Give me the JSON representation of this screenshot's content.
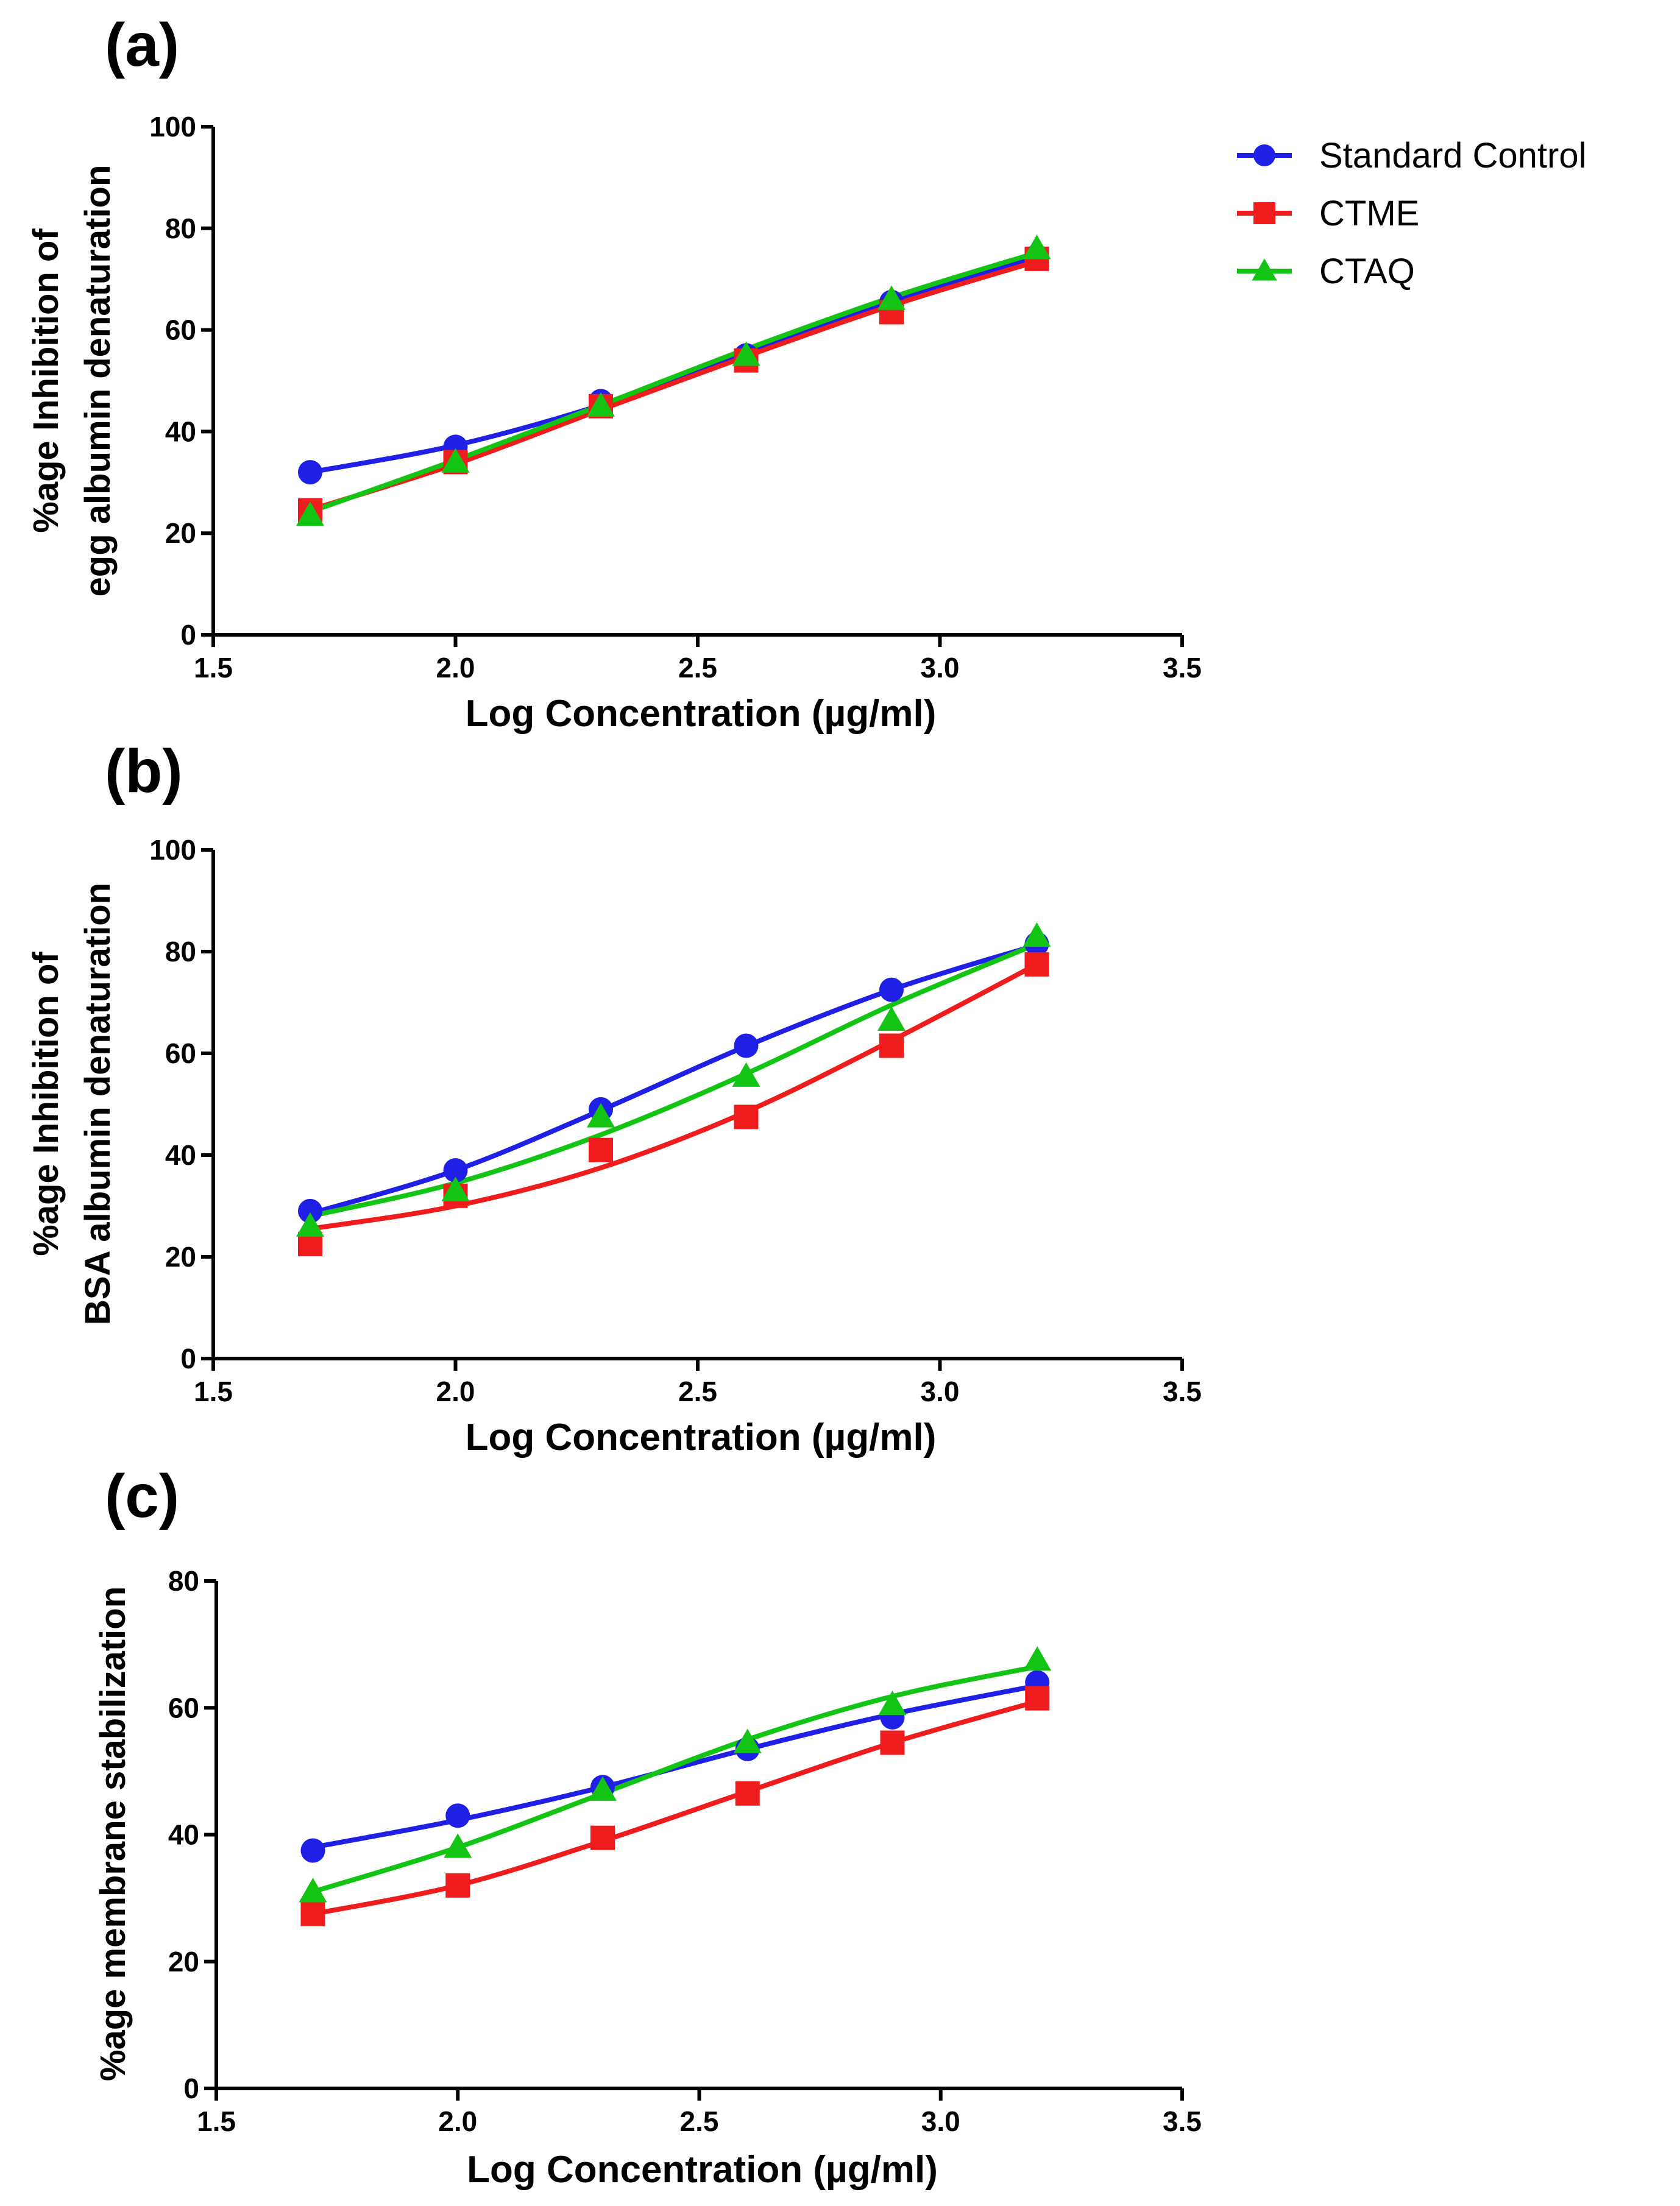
{
  "legend": {
    "items": [
      {
        "name": "Standard Control",
        "marker": "circle",
        "color": "#1f1fe6"
      },
      {
        "name": "CTME",
        "marker": "square",
        "color": "#ee1c1c"
      },
      {
        "name": "CTAQ",
        "marker": "triangle",
        "color": "#14c414"
      }
    ]
  },
  "chart_data": [
    {
      "panel_label": "(a)",
      "type": "line",
      "xlabel": "Log Concentration (µg/ml)",
      "ylabel_lines": [
        "%age Inhibition of",
        "egg albumin denaturation"
      ],
      "xlim": [
        1.5,
        3.5
      ],
      "ylim": [
        0,
        100
      ],
      "xticks": [
        1.5,
        2.0,
        2.5,
        3.0,
        3.5
      ],
      "xtick_labels": [
        "1.5",
        "2.0",
        "2.5",
        "3.0",
        "3.5"
      ],
      "yticks": [
        0,
        20,
        40,
        60,
        80,
        100
      ],
      "ytick_labels": [
        "0",
        "20",
        "40",
        "60",
        "80",
        "100"
      ],
      "x": [
        1.7,
        2.0,
        2.3,
        2.6,
        2.9,
        3.2
      ],
      "series": [
        {
          "name": "Standard Control",
          "values": [
            32,
            37,
            46,
            55,
            65.5,
            74.5
          ],
          "curve": [
            32,
            37.3,
            45.2,
            55.3,
            65.8,
            74.2
          ]
        },
        {
          "name": "CTME",
          "values": [
            24.5,
            34,
            45,
            54,
            63.5,
            74
          ],
          "curve": [
            24.6,
            33.6,
            44.3,
            54.8,
            64.8,
            73.5
          ]
        },
        {
          "name": "CTAQ",
          "values": [
            23.5,
            34,
            45,
            55,
            66,
            76
          ],
          "curve": [
            24.2,
            34.4,
            45.2,
            56.2,
            66.4,
            75.2
          ]
        }
      ]
    },
    {
      "panel_label": "(b)",
      "type": "line",
      "xlabel": "Log Concentration (µg/ml)",
      "ylabel_lines": [
        "%age Inhibition of",
        "BSA albumin denaturation"
      ],
      "xlim": [
        1.5,
        3.5
      ],
      "ylim": [
        0,
        100
      ],
      "xticks": [
        1.5,
        2.0,
        2.5,
        3.0,
        3.5
      ],
      "xtick_labels": [
        "1.5",
        "2.0",
        "2.5",
        "3.0",
        "3.5"
      ],
      "yticks": [
        0,
        20,
        40,
        60,
        80,
        100
      ],
      "ytick_labels": [
        "0",
        "20",
        "40",
        "60",
        "80",
        "100"
      ],
      "x": [
        1.7,
        2.0,
        2.3,
        2.6,
        2.9,
        3.2
      ],
      "series": [
        {
          "name": "Standard Control",
          "values": [
            29,
            37,
            49,
            61.5,
            72.5,
            81.5
          ],
          "curve": [
            28.5,
            37,
            48.8,
            61.4,
            72.5,
            81.3
          ]
        },
        {
          "name": "CTME",
          "values": [
            22.5,
            32,
            41,
            47.5,
            61.5,
            77.5
          ],
          "curve": [
            25.5,
            30,
            37.5,
            48.5,
            62.5,
            77.5
          ]
        },
        {
          "name": "CTAQ",
          "values": [
            26,
            33,
            47.5,
            55.5,
            66.5,
            83
          ],
          "curve": [
            28,
            34.5,
            44,
            56,
            69.5,
            81.5
          ]
        }
      ]
    },
    {
      "panel_label": "(c)",
      "type": "line",
      "xlabel": "Log Concentration (µg/ml)",
      "ylabel_lines": [
        "%age membrane stabilization"
      ],
      "xlim": [
        1.5,
        3.5
      ],
      "ylim": [
        0,
        80
      ],
      "xticks": [
        1.5,
        2.0,
        2.5,
        3.0,
        3.5
      ],
      "xtick_labels": [
        "1.5",
        "2.0",
        "2.5",
        "3.0",
        "3.5"
      ],
      "yticks": [
        0,
        20,
        40,
        60,
        80
      ],
      "ytick_labels": [
        "0",
        "20",
        "40",
        "60",
        "80"
      ],
      "x": [
        1.7,
        2.0,
        2.3,
        2.6,
        2.9,
        3.2
      ],
      "series": [
        {
          "name": "Standard Control",
          "values": [
            37.5,
            43,
            47.5,
            53.5,
            58.5,
            64
          ],
          "curve": [
            38,
            42.3,
            47.5,
            53.5,
            59,
            63.5
          ]
        },
        {
          "name": "CTME",
          "values": [
            27.5,
            32,
            39.5,
            46.5,
            54.5,
            61.5
          ],
          "curve": [
            27.5,
            32,
            39,
            46.8,
            54.5,
            61
          ]
        },
        {
          "name": "CTAQ",
          "values": [
            31,
            38,
            47,
            54.5,
            60.5,
            67.5
          ],
          "curve": [
            31,
            38,
            46.5,
            55,
            61.8,
            66.5
          ]
        }
      ]
    }
  ]
}
